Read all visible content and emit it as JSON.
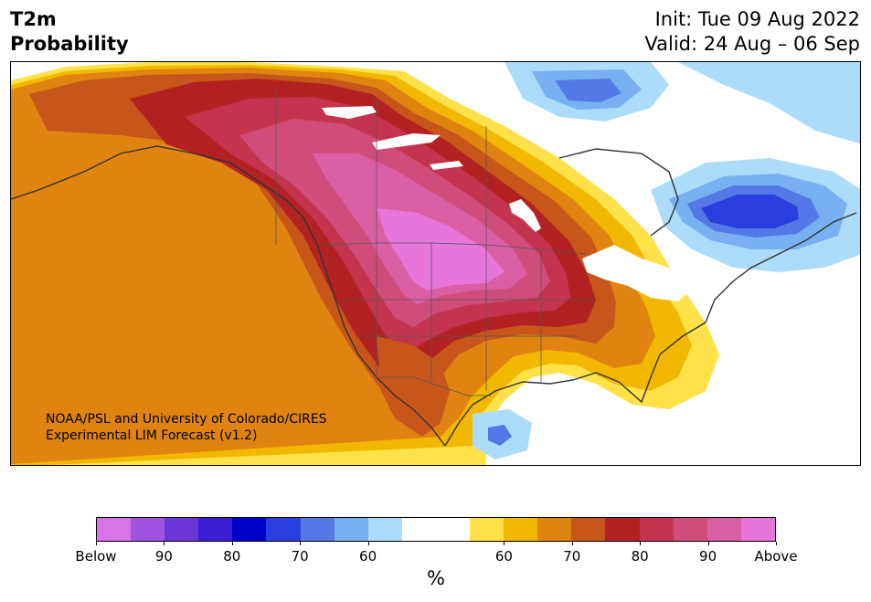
{
  "title": {
    "left_line1": "T2m",
    "left_line2": "Probability",
    "right_line1": "Init: Tue 09 Aug 2022",
    "right_line2": "Valid: 24 Aug – 06 Sep"
  },
  "credit": {
    "line1": "NOAA/PSL and University of Colorado/CIRES",
    "line2": "Experimental LIM Forecast (v1.2)"
  },
  "colorbar": {
    "unit_label": "%",
    "tick_labels": [
      "Below",
      "90",
      "80",
      "70",
      "60",
      "60",
      "70",
      "80",
      "90",
      "Above"
    ],
    "colors": [
      "#d774e8",
      "#a052e0",
      "#6a36d6",
      "#3b1dd3",
      "#0000cd",
      "#2a3fdd",
      "#5478e6",
      "#78b0f2",
      "#addcfa",
      "#ffffff",
      "#ffffff",
      "#ffe14a",
      "#f2b800",
      "#df8410",
      "#c8561a",
      "#b22222",
      "#c4344e",
      "#d04c7a",
      "#da60a6",
      "#e676da"
    ]
  },
  "map": {
    "colors": {
      "above": "#e676da",
      "p90w": "#da60a6",
      "p85w": "#d04c7a",
      "p80w": "#c4344e",
      "p75w": "#b22222",
      "p70w": "#c8561a",
      "p65w": "#df8410",
      "p60w": "#f2b800",
      "p55w": "#ffe14a",
      "p55c": "#addcfa",
      "p60c": "#78b0f2",
      "p65c": "#5478e6",
      "p70c": "#2a3fdd",
      "coast": "#333333"
    }
  }
}
